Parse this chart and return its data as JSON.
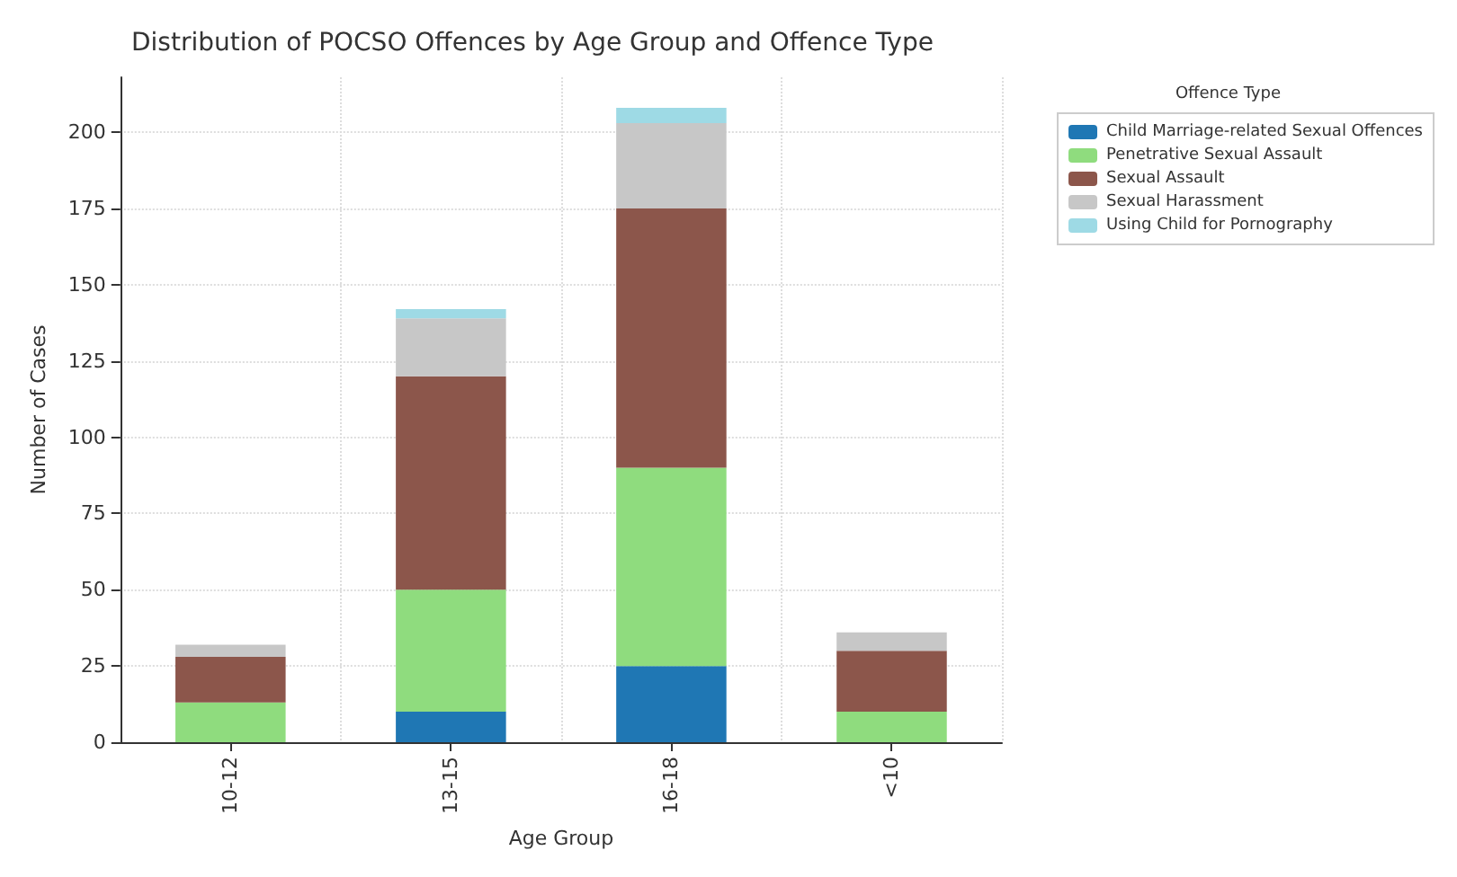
{
  "chart_data": {
    "type": "bar",
    "stacked": true,
    "title": "Distribution of POCSO Offences by Age Group and Offence Type",
    "xlabel": "Age Group",
    "ylabel": "Number of Cases",
    "legend_title": "Offence Type",
    "legend": "top right",
    "grid": true,
    "categories": [
      "10-12",
      "13-15",
      "16-18",
      "<10"
    ],
    "series": [
      {
        "name": "Child Marriage-related Sexual Offences",
        "color": "#1f77b4",
        "values": [
          0,
          10,
          25,
          0
        ]
      },
      {
        "name": "Penetrative Sexual Assault",
        "color": "#8fdc7e",
        "values": [
          13,
          40,
          65,
          10
        ]
      },
      {
        "name": "Sexual Assault",
        "color": "#8c564b",
        "values": [
          15,
          70,
          85,
          20
        ]
      },
      {
        "name": "Sexual Harassment",
        "color": "#c7c7c7",
        "values": [
          4,
          19,
          28,
          6
        ]
      },
      {
        "name": "Using Child for Pornography",
        "color": "#9edae5",
        "values": [
          0,
          3,
          5,
          0
        ]
      }
    ],
    "ylim": [
      0,
      218
    ],
    "yticks": [
      0,
      25,
      50,
      75,
      100,
      125,
      150,
      175,
      200
    ]
  }
}
